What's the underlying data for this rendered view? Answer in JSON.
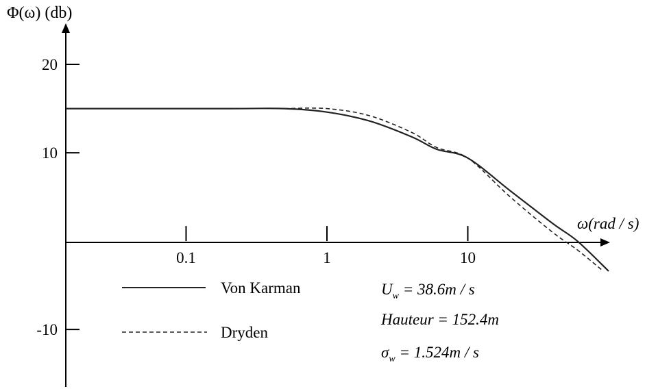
{
  "chart_data": {
    "type": "line",
    "ylabel": "Φ(ω) (db)",
    "xlabel": "ω(rad / s)",
    "x_scale": "log",
    "x_ticks": [
      {
        "value": 0.1,
        "label": "0.1"
      },
      {
        "value": 1,
        "label": "1"
      },
      {
        "value": 10,
        "label": "10"
      }
    ],
    "y_ticks": [
      {
        "value": 20,
        "label": "20"
      },
      {
        "value": 10,
        "label": "10"
      },
      {
        "value": -10,
        "label": "-10"
      }
    ],
    "xlim": [
      0.014,
      100
    ],
    "ylim": [
      -16.5,
      24.5
    ],
    "grid": false,
    "legend_position": "bottom-left",
    "series": [
      {
        "name": "Von Karman",
        "style": "solid",
        "points": [
          [
            0.014,
            15.0
          ],
          [
            0.2,
            15.0
          ],
          [
            0.5,
            15.0
          ],
          [
            1,
            14.6
          ],
          [
            2,
            13.6
          ],
          [
            4,
            11.8
          ],
          [
            6,
            10.4
          ],
          [
            10,
            9.4
          ],
          [
            20,
            5.7
          ],
          [
            40,
            2.0
          ],
          [
            60,
            0.0
          ],
          [
            100,
            -3.4
          ]
        ]
      },
      {
        "name": "Dryden",
        "style": "dashed",
        "points": [
          [
            0.5,
            15.0
          ],
          [
            1,
            15.0
          ],
          [
            2,
            14.2
          ],
          [
            4,
            12.3
          ],
          [
            6,
            10.6
          ],
          [
            10,
            9.4
          ],
          [
            20,
            5.0
          ],
          [
            40,
            1.0
          ],
          [
            60,
            -1.0
          ],
          [
            90,
            -3.3
          ]
        ]
      }
    ],
    "annotations": [
      {
        "id": "speed",
        "text": "U_w = 38.6m / s"
      },
      {
        "id": "height",
        "text": "Hauteur = 152.4m"
      },
      {
        "id": "sigma",
        "text": "σ_w = 1.524m / s"
      }
    ]
  },
  "legend": {
    "von_karman_label": "Von Karman",
    "dryden_label": "Dryden"
  },
  "params": {
    "speed_symbol": "U",
    "speed_sub": "w",
    "speed_value": " = 38.6m / s",
    "height_text": "Hauteur = 152.4m",
    "sigma_symbol": "σ",
    "sigma_sub": "w",
    "sigma_value": " = 1.524m / s"
  }
}
